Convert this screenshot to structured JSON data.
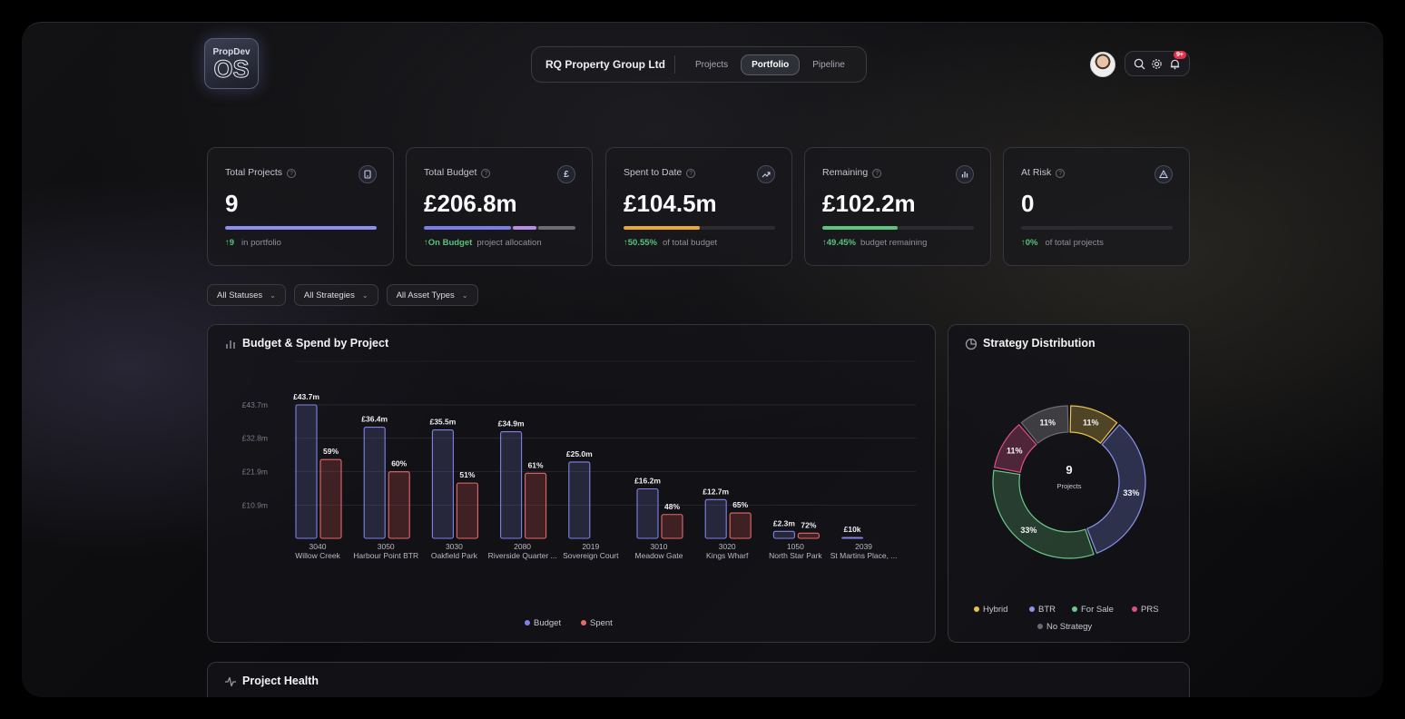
{
  "app": {
    "logo_top": "PropDev",
    "logo_bottom": "OS"
  },
  "header": {
    "org_name": "RQ Property Group Ltd",
    "tabs": [
      {
        "label": "Projects",
        "active": false
      },
      {
        "label": "Portfolio",
        "active": true
      },
      {
        "label": "Pipeline",
        "active": false
      }
    ],
    "notification_badge": "9+",
    "icons": [
      "search-icon",
      "gear-icon",
      "bell-icon"
    ]
  },
  "kpis": [
    {
      "label": "Total Projects",
      "icon": "building-icon",
      "value": "9",
      "foot_strong": "↑9",
      "foot_text": "in portfolio",
      "bar": [
        1.0
      ],
      "bar_colors": [
        "#8f8ef0"
      ]
    },
    {
      "label": "Total Budget",
      "icon": "pound-icon",
      "icon_glyph": "£",
      "value": "£206.8m",
      "foot_strong": "↑On Budget",
      "foot_text": "project allocation",
      "bar": [
        0.59,
        0.16,
        0.25
      ],
      "bar_colors": [
        "#7a7de6",
        "#b48ee6",
        "#6c6c74"
      ]
    },
    {
      "label": "Spent to Date",
      "icon": "trend-up-icon",
      "value": "£104.5m",
      "foot_strong": "↑50.55%",
      "foot_text": "of total budget",
      "bar": [
        0.5055
      ],
      "bar_colors": [
        "#e8a73a"
      ]
    },
    {
      "label": "Remaining",
      "icon": "bar-chart-icon",
      "value": "£102.2m",
      "foot_strong": "↑49.45%",
      "foot_text": "budget remaining",
      "bar": [
        0.4945
      ],
      "bar_colors": [
        "#5cc47e"
      ]
    },
    {
      "label": "At Risk",
      "icon": "warning-icon",
      "value": "0",
      "foot_strong": "↑0%",
      "foot_text": "of total projects",
      "bar": [
        0
      ],
      "bar_colors": [
        "#e05a5a"
      ]
    }
  ],
  "filters": [
    {
      "label": "All Statuses"
    },
    {
      "label": "All Strategies"
    },
    {
      "label": "All Asset Types"
    }
  ],
  "budget_panel": {
    "title": "Budget & Spend by Project"
  },
  "strategy_panel": {
    "title": "Strategy Distribution",
    "center_value": "9",
    "center_label": "Projects"
  },
  "health_panel": {
    "title": "Project Health"
  },
  "chart_data": [
    {
      "type": "bar",
      "title": "Budget & Spend by Project",
      "y_tick_labels": [
        "£43.7m",
        "£32.8m",
        "£21.9m",
        "£10.9m"
      ],
      "y_ticks": [
        43.7,
        32.8,
        21.9,
        10.9
      ],
      "ylim": [
        0,
        43.7
      ],
      "categories": [
        {
          "code": "3040",
          "name": "Willow Creek"
        },
        {
          "code": "3050",
          "name": "Harbour Point BTR"
        },
        {
          "code": "3030",
          "name": "Oakfield Park"
        },
        {
          "code": "2080",
          "name": "Riverside Quarter ..."
        },
        {
          "code": "2019",
          "name": "Sovereign Court"
        },
        {
          "code": "3010",
          "name": "Meadow Gate"
        },
        {
          "code": "3020",
          "name": "Kings Wharf"
        },
        {
          "code": "1050",
          "name": "North Star Park"
        },
        {
          "code": "2039",
          "name": "St Martins Place, ..."
        }
      ],
      "series": [
        {
          "name": "Budget",
          "color": "#7f83e8",
          "values": [
            43.7,
            36.4,
            35.5,
            34.9,
            25.0,
            16.2,
            12.7,
            2.3,
            0.01
          ],
          "labels": [
            "£43.7m",
            "£36.4m",
            "£35.5m",
            "£34.9m",
            "£25.0m",
            "£16.2m",
            "£12.7m",
            "£2.3m",
            "£10k"
          ]
        },
        {
          "name": "Spent",
          "color": "#e46a6a",
          "values": [
            25.8,
            21.8,
            18.1,
            21.3,
            0,
            7.8,
            8.3,
            1.7,
            0
          ],
          "labels": [
            "59%",
            "60%",
            "51%",
            "61%",
            "",
            "48%",
            "65%",
            "72%",
            ""
          ]
        }
      ],
      "legend": "bottom"
    },
    {
      "type": "pie",
      "title": "Strategy Distribution",
      "categories": [
        "Hybrid",
        "BTR",
        "For Sale",
        "PRS",
        "No Strategy"
      ],
      "values": [
        11,
        33,
        33,
        11,
        11
      ],
      "colors": [
        "#e8c14a",
        "#8a92ea",
        "#6cc98a",
        "#d9508a",
        "#6a6a72"
      ],
      "labels": [
        "11%",
        "33%",
        "33%",
        "11%",
        "11%"
      ],
      "legend": "bottom"
    }
  ]
}
